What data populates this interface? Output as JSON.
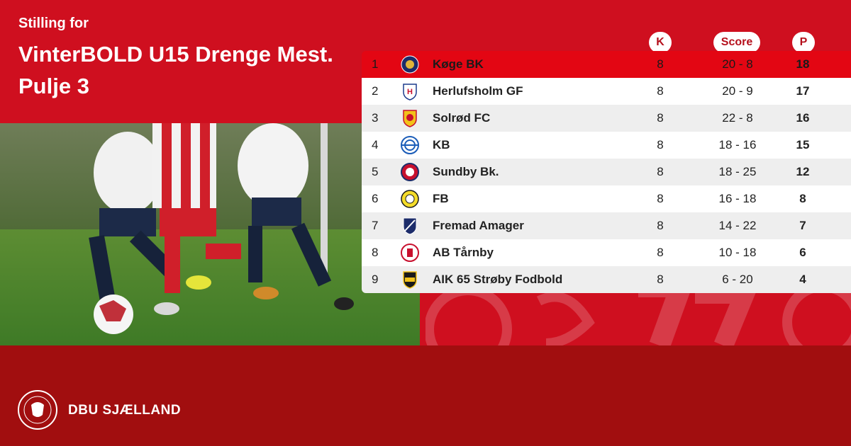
{
  "header": {
    "subtitle": "Stilling for",
    "title_line1": "VinterBOLD U15 Drenge Mest.",
    "title_line2": "Pulje 3"
  },
  "columns": {
    "k": "K",
    "score": "Score",
    "p": "P"
  },
  "standings": [
    {
      "pos": "1",
      "team": "Køge BK",
      "k": "8",
      "score": "20 - 8",
      "p": "18",
      "logo": "koge-bk-logo"
    },
    {
      "pos": "2",
      "team": "Herlufsholm GF",
      "k": "8",
      "score": "20 - 9",
      "p": "17",
      "logo": "herlufsholm-gf-logo"
    },
    {
      "pos": "3",
      "team": "Solrød FC",
      "k": "8",
      "score": "22 - 8",
      "p": "16",
      "logo": "solrod-fc-logo"
    },
    {
      "pos": "4",
      "team": "KB",
      "k": "8",
      "score": "18 - 16",
      "p": "15",
      "logo": "kb-logo"
    },
    {
      "pos": "5",
      "team": "Sundby Bk.",
      "k": "8",
      "score": "18 - 25",
      "p": "12",
      "logo": "sundby-bk-logo"
    },
    {
      "pos": "6",
      "team": "FB",
      "k": "8",
      "score": "16 - 18",
      "p": "8",
      "logo": "fb-logo"
    },
    {
      "pos": "7",
      "team": "Fremad Amager",
      "k": "8",
      "score": "14 - 22",
      "p": "7",
      "logo": "fremad-amager-logo"
    },
    {
      "pos": "8",
      "team": "AB Tårnby",
      "k": "8",
      "score": "10 - 18",
      "p": "6",
      "logo": "ab-tarnby-logo"
    },
    {
      "pos": "9",
      "team": "AIK 65 Strøby Fodbold",
      "k": "8",
      "score": "6 - 20",
      "p": "4",
      "logo": "aik-65-stroby-logo"
    }
  ],
  "footer": {
    "brand": "DBU SJÆLLAND"
  },
  "colors": {
    "brand_red": "#cf0f1f",
    "dark_red": "#a10e0f",
    "highlight_row": "#e30613"
  }
}
